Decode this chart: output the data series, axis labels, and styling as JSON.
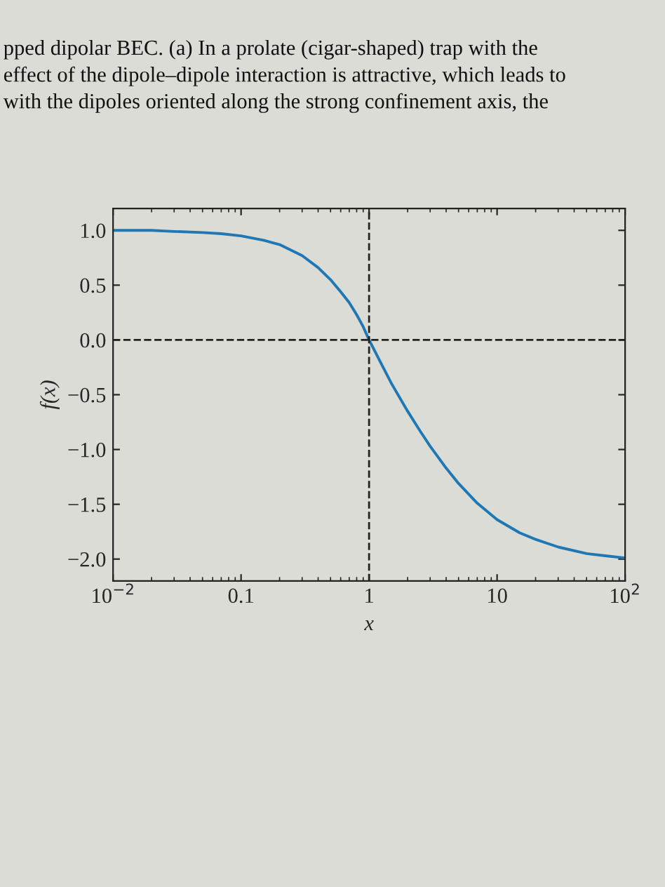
{
  "chart_data": {
    "type": "line",
    "xlabel": "x",
    "ylabel": "f(x)",
    "log": "x",
    "annotations": [
      "pped dipolar BEC. (a) In a prolate (cigar-shaped) trap with the",
      "effect of the dipole–dipole interaction is attractive, which leads to",
      "with the dipoles oriented along the strong confinement axis, the"
    ],
    "x": [
      0.01,
      0.02,
      0.03,
      0.05,
      0.07,
      0.1,
      0.15,
      0.2,
      0.3,
      0.4,
      0.5,
      0.6,
      0.7,
      0.8,
      0.9,
      1,
      1.2,
      1.5,
      2,
      2.5,
      3,
      4,
      5,
      7,
      10,
      15,
      20,
      30,
      50,
      70,
      100
    ],
    "series": [
      {
        "color": "#1f77b4",
        "values": [
          1.0,
          1.0,
          0.99,
          0.98,
          0.97,
          0.95,
          0.91,
          0.87,
          0.77,
          0.66,
          0.55,
          0.44,
          0.34,
          0.23,
          0.12,
          0.0,
          -0.18,
          -0.4,
          -0.65,
          -0.83,
          -0.97,
          -1.17,
          -1.31,
          -1.49,
          -1.64,
          -1.76,
          -1.82,
          -1.89,
          -1.95,
          -1.97,
          -1.99
        ]
      }
    ],
    "xlim": [
      0.01,
      100
    ],
    "xticks": [
      {
        "value": 0.01,
        "label": "10$^{−2}$"
      },
      {
        "value": 0.1,
        "label": "0.1"
      },
      {
        "value": 1,
        "label": "1"
      },
      {
        "value": 10,
        "label": "10"
      },
      {
        "value": 100,
        "label": "10$^{2}$"
      }
    ],
    "ylim": [
      -2.2,
      1.2
    ],
    "yticks": [
      {
        "value": 1.0,
        "label": "1.0"
      },
      {
        "value": 0.5,
        "label": "0.5"
      },
      {
        "value": 0.0,
        "label": "0.0"
      },
      {
        "value": -0.5,
        "label": "−0.5"
      },
      {
        "value": -1.0,
        "label": "−1.0"
      },
      {
        "value": -1.5,
        "label": "−1.5"
      },
      {
        "value": -2.0,
        "label": "−2.0"
      }
    ],
    "ref_lines": [
      {
        "axis": "x",
        "value": 1,
        "color": "#222222",
        "line_style": "dashed"
      },
      {
        "axis": "y",
        "value": 0,
        "color": "#222222",
        "line_style": "dashed"
      }
    ],
    "grid": false,
    "legend": false,
    "marker": "none",
    "line_style": "solid"
  }
}
